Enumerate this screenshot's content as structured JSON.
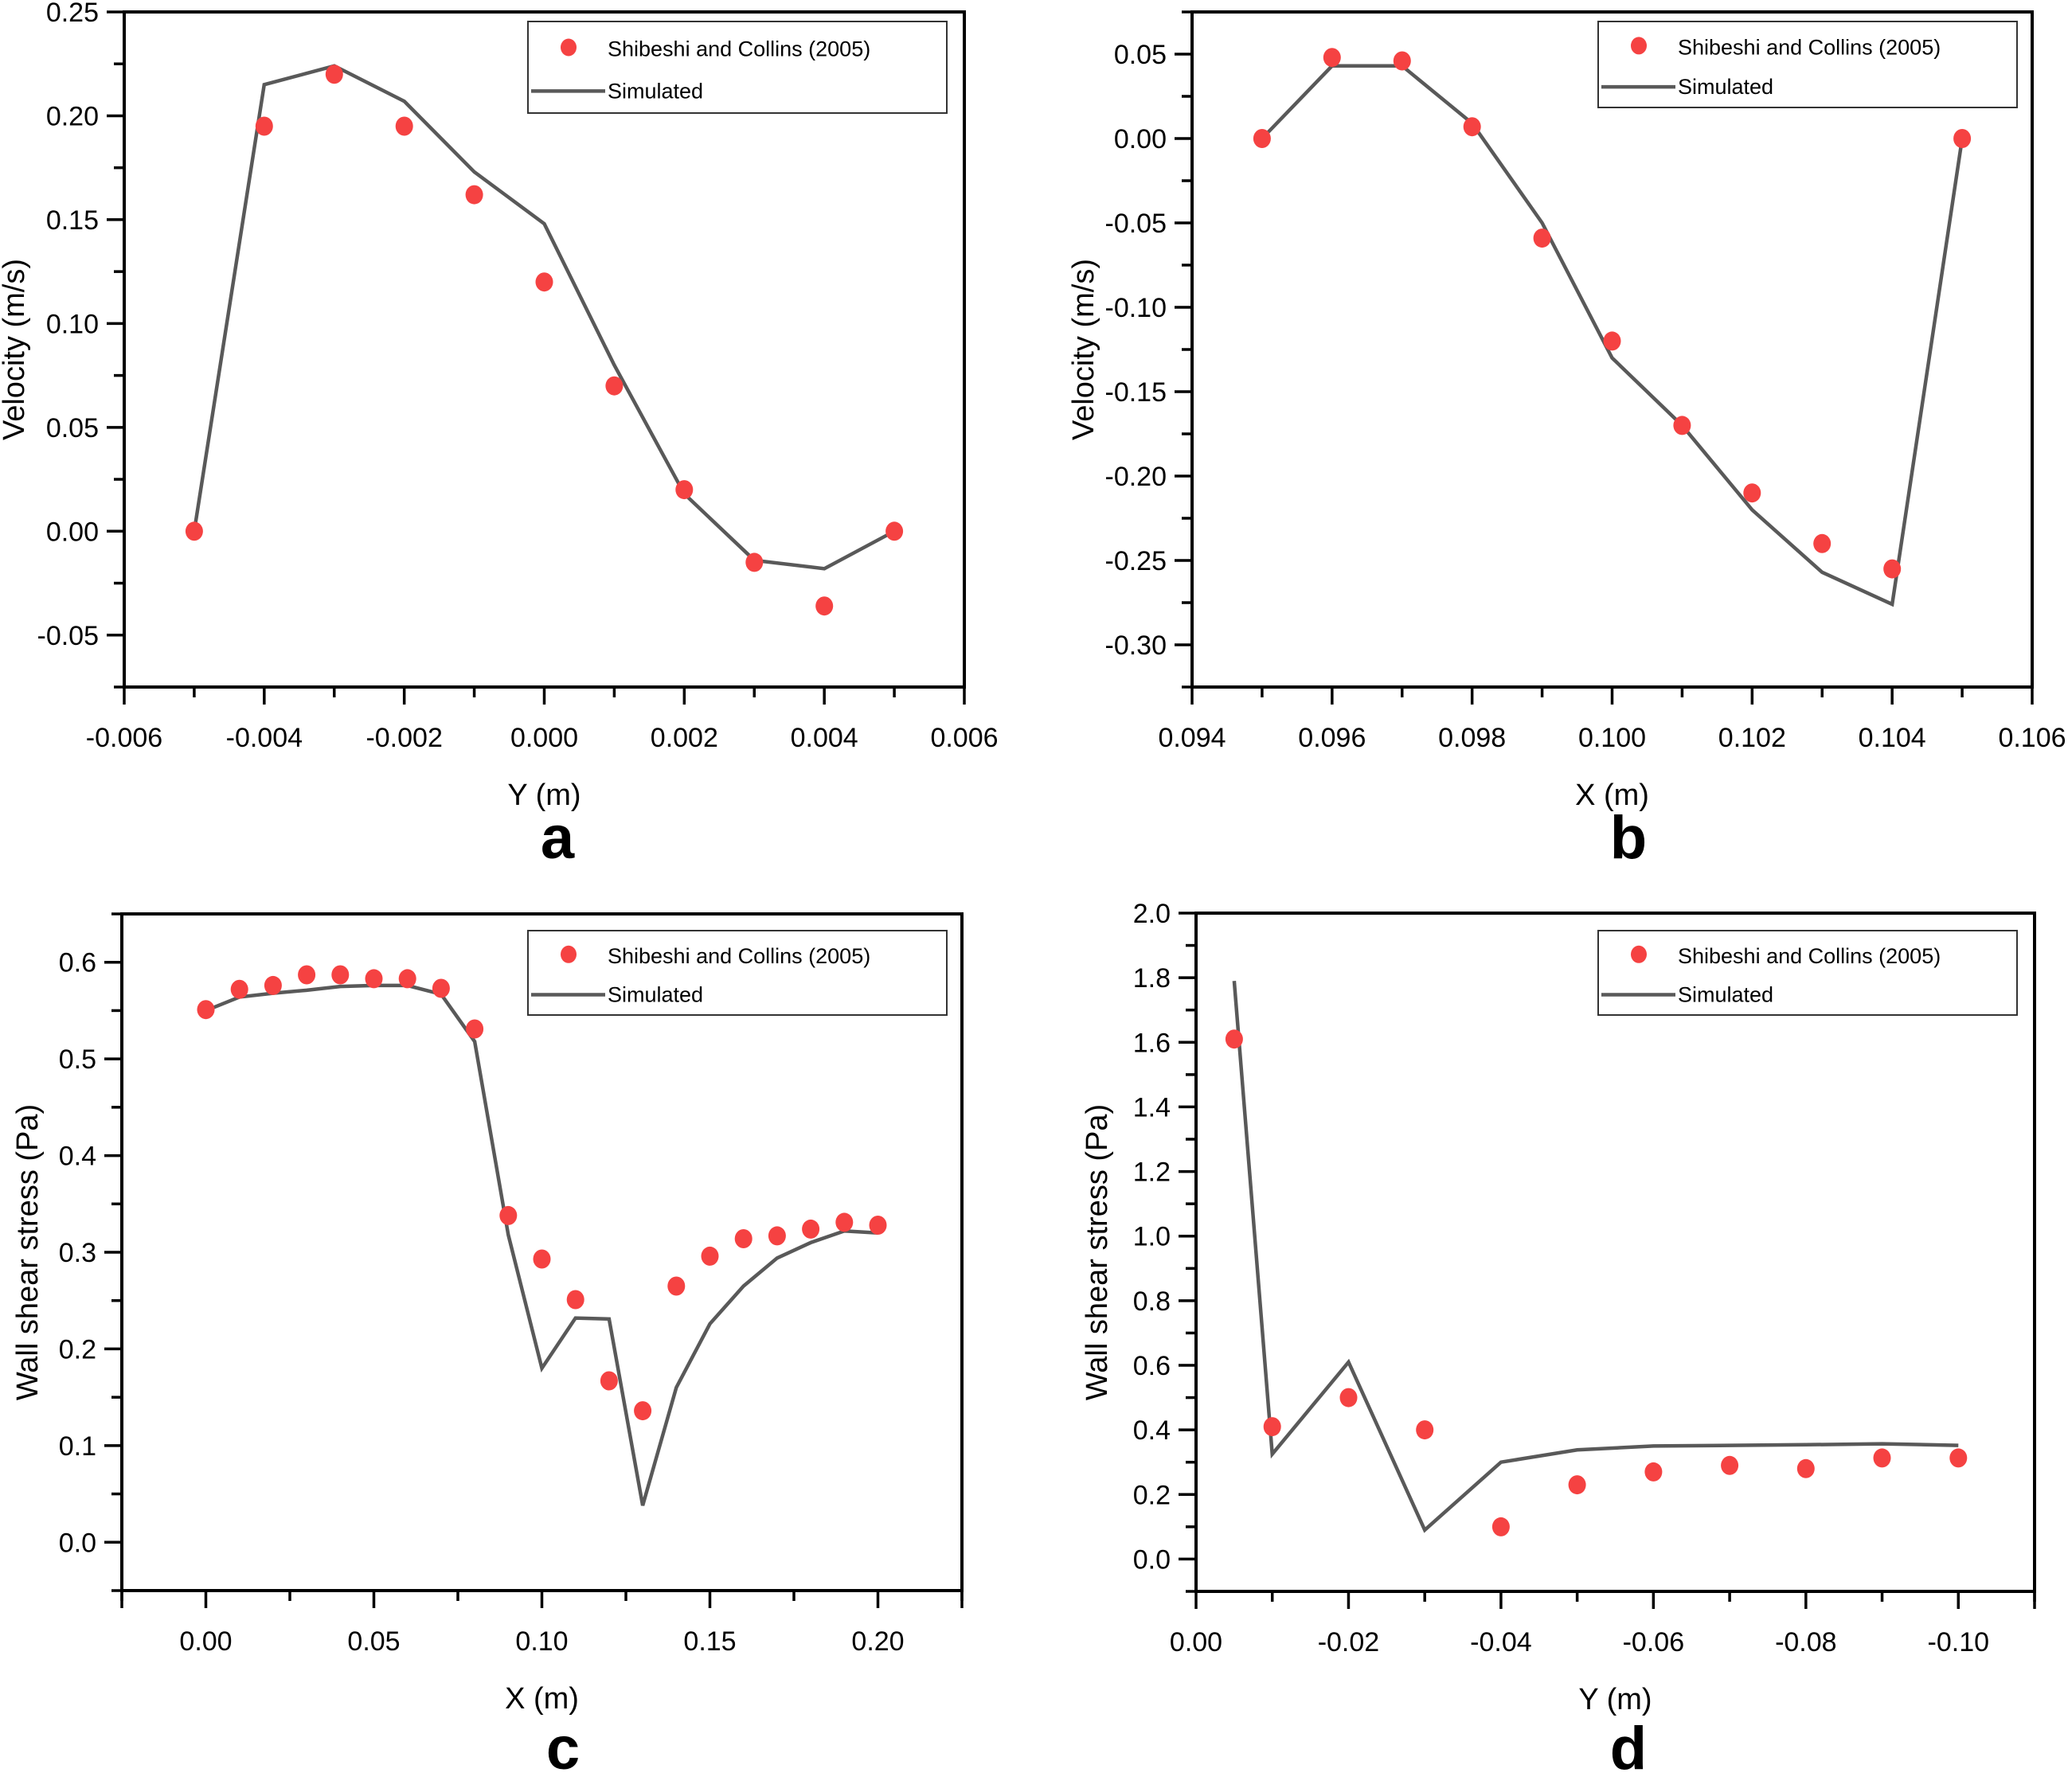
{
  "figure": {
    "panels_order": [
      "a",
      "b",
      "c",
      "d"
    ]
  },
  "chart_data": [
    {
      "panel_label": "a",
      "type": "line",
      "title": "",
      "xlabel": "Y (m)",
      "ylabel": "Velocity (m/s)",
      "xlim": [
        -0.006,
        0.006
      ],
      "ylim": [
        -0.075,
        0.25
      ],
      "xticks": [
        -0.006,
        -0.004,
        -0.002,
        0.0,
        0.002,
        0.004,
        0.006
      ],
      "xtick_labels": [
        "-0.006",
        "-0.004",
        "-0.002",
        "0.000",
        "0.002",
        "0.004",
        "0.006"
      ],
      "yticks": [
        -0.05,
        0.0,
        0.05,
        0.1,
        0.15,
        0.2,
        0.25
      ],
      "ytick_labels": [
        "-0.05",
        "0.00",
        "0.05",
        "0.10",
        "0.15",
        "0.20",
        "0.25"
      ],
      "grid": false,
      "legend": {
        "position": "top-right",
        "entries": [
          "Shibeshi and Collins (2005)",
          "Simulated"
        ]
      },
      "series": [
        {
          "name": "Shibeshi and Collins (2005)",
          "kind": "scatter",
          "color": "#F54242",
          "x": [
            -0.005,
            -0.004,
            -0.003,
            -0.002,
            -0.001,
            0.0,
            0.001,
            0.002,
            0.003,
            0.004,
            0.005
          ],
          "y": [
            0.0,
            0.195,
            0.22,
            0.195,
            0.162,
            0.12,
            0.07,
            0.02,
            -0.015,
            -0.036,
            0.0
          ]
        },
        {
          "name": "Simulated",
          "kind": "line",
          "color": "#595959",
          "x": [
            -0.005,
            -0.004,
            -0.003,
            -0.002,
            -0.001,
            0.0,
            0.001,
            0.002,
            0.003,
            0.004,
            0.005
          ],
          "y": [
            0.0,
            0.215,
            0.224,
            0.207,
            0.173,
            0.148,
            0.08,
            0.018,
            -0.014,
            -0.018,
            0.0
          ]
        }
      ]
    },
    {
      "panel_label": "b",
      "type": "line",
      "title": "",
      "xlabel": "X (m)",
      "ylabel": "Velocity (m/s)",
      "xlim": [
        0.094,
        0.106
      ],
      "ylim": [
        -0.325,
        0.075
      ],
      "xticks": [
        0.094,
        0.096,
        0.098,
        0.1,
        0.102,
        0.104,
        0.106
      ],
      "xtick_labels": [
        "0.094",
        "0.096",
        "0.098",
        "0.100",
        "0.102",
        "0.104",
        "0.106"
      ],
      "yticks": [
        -0.3,
        -0.25,
        -0.2,
        -0.15,
        -0.1,
        -0.05,
        0.0,
        0.05
      ],
      "ytick_labels": [
        "-0.30",
        "-0.25",
        "-0.20",
        "-0.15",
        "-0.10",
        "-0.05",
        "0.00",
        "0.05"
      ],
      "grid": false,
      "legend": {
        "position": "top-right",
        "entries": [
          "Shibeshi and Collins (2005)",
          "Simulated"
        ]
      },
      "series": [
        {
          "name": "Shibeshi and Collins (2005)",
          "kind": "scatter",
          "color": "#F54242",
          "x": [
            0.095,
            0.096,
            0.097,
            0.098,
            0.099,
            0.1,
            0.101,
            0.102,
            0.103,
            0.104,
            0.105
          ],
          "y": [
            0.0,
            0.048,
            0.046,
            0.007,
            -0.059,
            -0.12,
            -0.17,
            -0.21,
            -0.24,
            -0.255,
            0.0
          ]
        },
        {
          "name": "Simulated",
          "kind": "line",
          "color": "#595959",
          "x": [
            0.095,
            0.096,
            0.097,
            0.098,
            0.099,
            0.1,
            0.101,
            0.102,
            0.103,
            0.104,
            0.105
          ],
          "y": [
            0.0,
            0.043,
            0.043,
            0.009,
            -0.05,
            -0.13,
            -0.17,
            -0.22,
            -0.257,
            -0.276,
            0.0
          ]
        }
      ]
    },
    {
      "panel_label": "c",
      "type": "line",
      "title": "",
      "xlabel": "X (m)",
      "ylabel": "Wall shear stress (Pa)",
      "xlim": [
        -0.025,
        0.225
      ],
      "ylim": [
        -0.05,
        0.65
      ],
      "xticks": [
        0.0,
        0.05,
        0.1,
        0.15,
        0.2
      ],
      "xtick_labels": [
        "0.00",
        "0.05",
        "0.10",
        "0.15",
        "0.20"
      ],
      "yticks": [
        0.0,
        0.1,
        0.2,
        0.3,
        0.4,
        0.5,
        0.6
      ],
      "ytick_labels": [
        "0.0",
        "0.1",
        "0.2",
        "0.3",
        "0.4",
        "0.5",
        "0.6"
      ],
      "grid": false,
      "legend": {
        "position": "top-right",
        "entries": [
          "Shibeshi and Collins (2005)",
          "Simulated"
        ]
      },
      "series": [
        {
          "name": "Shibeshi and Collins (2005)",
          "kind": "scatter",
          "color": "#F54242",
          "x": [
            0.0,
            0.01,
            0.02,
            0.03,
            0.04,
            0.05,
            0.06,
            0.07,
            0.08,
            0.09,
            0.1,
            0.11,
            0.12,
            0.13,
            0.14,
            0.15,
            0.16,
            0.17,
            0.18,
            0.19,
            0.2
          ],
          "y": [
            0.551,
            0.572,
            0.576,
            0.587,
            0.587,
            0.583,
            0.583,
            0.573,
            0.531,
            0.338,
            0.293,
            0.251,
            0.167,
            0.136,
            0.265,
            0.296,
            0.314,
            0.317,
            0.324,
            0.331,
            0.328
          ]
        },
        {
          "name": "Simulated",
          "kind": "line",
          "color": "#595959",
          "x": [
            0.0,
            0.01,
            0.02,
            0.03,
            0.04,
            0.05,
            0.06,
            0.07,
            0.08,
            0.09,
            0.1,
            0.11,
            0.12,
            0.13,
            0.14,
            0.15,
            0.16,
            0.17,
            0.18,
            0.19,
            0.2
          ],
          "y": [
            0.55,
            0.564,
            0.568,
            0.571,
            0.575,
            0.576,
            0.576,
            0.567,
            0.518,
            0.318,
            0.18,
            0.232,
            0.231,
            0.038,
            0.16,
            0.226,
            0.265,
            0.294,
            0.31,
            0.322,
            0.32
          ]
        }
      ]
    },
    {
      "panel_label": "d",
      "type": "line",
      "title": "",
      "xlabel": "Y (m)",
      "ylabel": "Wall shear stress (Pa)",
      "xlim": [
        0.0,
        -0.11
      ],
      "ylim": [
        -0.1,
        2.0
      ],
      "xticks": [
        0.0,
        -0.02,
        -0.04,
        -0.06,
        -0.08,
        -0.1
      ],
      "xtick_labels": [
        "0.00",
        "-0.02",
        "-0.04",
        "-0.06",
        "-0.08",
        "-0.10"
      ],
      "yticks": [
        0.0,
        0.2,
        0.4,
        0.6,
        0.8,
        1.0,
        1.2,
        1.4,
        1.6,
        1.8,
        2.0
      ],
      "ytick_labels": [
        "0.0",
        "0.2",
        "0.4",
        "0.6",
        "0.8",
        "1.0",
        "1.2",
        "1.4",
        "1.6",
        "1.8",
        "2.0"
      ],
      "grid": false,
      "legend": {
        "position": "top-right",
        "entries": [
          "Shibeshi and Collins (2005)",
          "Simulated"
        ]
      },
      "series": [
        {
          "name": "Shibeshi and Collins (2005)",
          "kind": "scatter",
          "color": "#F54242",
          "x": [
            -0.005,
            -0.01,
            -0.02,
            -0.03,
            -0.04,
            -0.05,
            -0.06,
            -0.07,
            -0.08,
            -0.09,
            -0.1
          ],
          "y": [
            1.61,
            0.41,
            0.5,
            0.4,
            0.1,
            0.23,
            0.27,
            0.29,
            0.28,
            0.313,
            0.313
          ]
        },
        {
          "name": "Simulated",
          "kind": "line",
          "color": "#595959",
          "x": [
            -0.005,
            -0.01,
            -0.02,
            -0.03,
            -0.04,
            -0.05,
            -0.06,
            -0.07,
            -0.08,
            -0.09,
            -0.1
          ],
          "y": [
            1.79,
            0.325,
            0.61,
            0.09,
            0.3,
            0.338,
            0.35,
            0.352,
            0.354,
            0.357,
            0.352
          ]
        }
      ]
    }
  ]
}
